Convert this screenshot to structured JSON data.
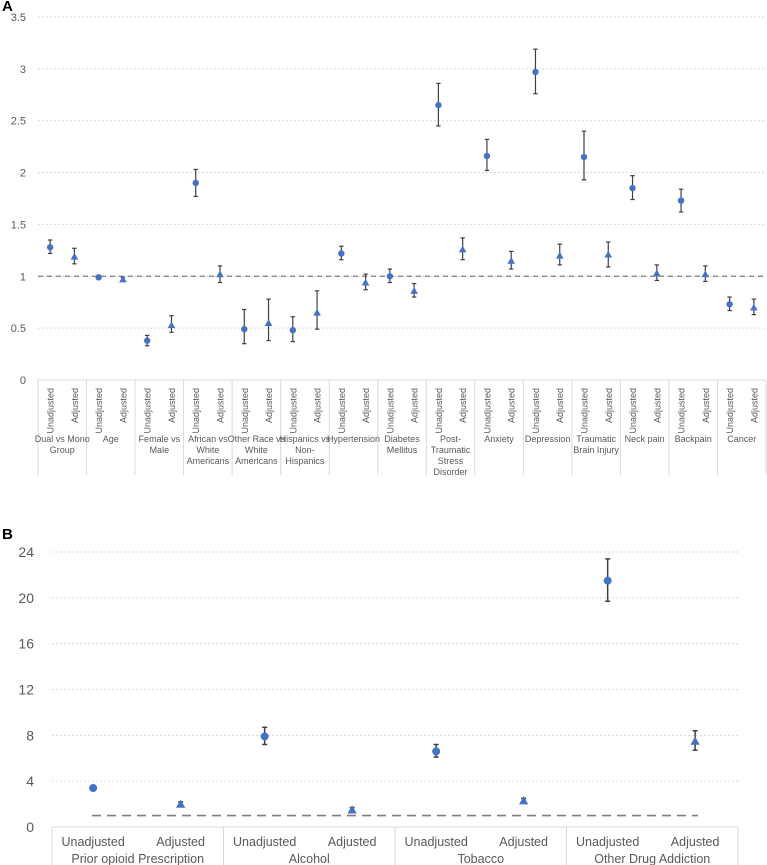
{
  "panels": [
    {
      "label": "A"
    },
    {
      "label": "B"
    }
  ],
  "colors": {
    "marker": "#4472C4",
    "errorbar": "#404040",
    "reference_line": "#7f7f7f",
    "grid": "#d9d9d9",
    "axis_text": "#595959"
  },
  "chart_data": [
    {
      "type": "scatter",
      "title": "",
      "xlabel": "",
      "ylabel": "",
      "ylim": [
        0,
        3.5
      ],
      "yticks": [
        "0",
        "0.5",
        "1",
        "1.5",
        "2",
        "2.5",
        "3",
        "3.5"
      ],
      "grid": "horizontal dotted",
      "reference_line": 1,
      "sub_labels": [
        "Unadjusted",
        "Adjusted"
      ],
      "marker_shapes": {
        "Unadjusted": "circle",
        "Adjusted": "triangle"
      },
      "groups": [
        {
          "label": "Dual vs Mono Group",
          "lines": [
            "Dual vs Mono",
            "Group"
          ],
          "points": [
            {
              "y": 1.28,
              "lo": 1.22,
              "hi": 1.35
            },
            {
              "y": 1.19,
              "lo": 1.12,
              "hi": 1.27
            }
          ]
        },
        {
          "label": "Age",
          "lines": [
            "Age"
          ],
          "points": [
            {
              "y": 0.99,
              "lo": 0.98,
              "hi": 1.0
            },
            {
              "y": 0.97,
              "lo": 0.96,
              "hi": 0.99
            }
          ]
        },
        {
          "label": "Female vs Male",
          "lines": [
            "Female vs",
            "Male"
          ],
          "points": [
            {
              "y": 0.38,
              "lo": 0.33,
              "hi": 0.43
            },
            {
              "y": 0.53,
              "lo": 0.46,
              "hi": 0.62
            }
          ]
        },
        {
          "label": "African vs White Americans",
          "lines": [
            "African vs",
            "White",
            "Americans"
          ],
          "points": [
            {
              "y": 1.9,
              "lo": 1.77,
              "hi": 2.03
            },
            {
              "y": 1.02,
              "lo": 0.94,
              "hi": 1.1
            }
          ]
        },
        {
          "label": "Other Race vs White Americans",
          "lines": [
            "Other Race vs",
            "White",
            "Americans"
          ],
          "points": [
            {
              "y": 0.49,
              "lo": 0.35,
              "hi": 0.68
            },
            {
              "y": 0.55,
              "lo": 0.38,
              "hi": 0.78
            }
          ]
        },
        {
          "label": "Hispanics vs Non-Hispanics",
          "lines": [
            "Hispanics vs",
            "Non-",
            "Hispanics"
          ],
          "points": [
            {
              "y": 0.48,
              "lo": 0.37,
              "hi": 0.61
            },
            {
              "y": 0.65,
              "lo": 0.49,
              "hi": 0.86
            }
          ]
        },
        {
          "label": "Hypertension",
          "lines": [
            "Hypertension"
          ],
          "points": [
            {
              "y": 1.22,
              "lo": 1.16,
              "hi": 1.29
            },
            {
              "y": 0.94,
              "lo": 0.87,
              "hi": 1.02
            }
          ]
        },
        {
          "label": "Diabetes Mellitus",
          "lines": [
            "Diabetes",
            "Mellitus"
          ],
          "points": [
            {
              "y": 1.0,
              "lo": 0.94,
              "hi": 1.07
            },
            {
              "y": 0.86,
              "lo": 0.8,
              "hi": 0.93
            }
          ]
        },
        {
          "label": "Post-Traumatic Stress Disorder",
          "lines": [
            "Post-",
            "Traumatic",
            "Stress",
            "Disorder"
          ],
          "points": [
            {
              "y": 2.65,
              "lo": 2.45,
              "hi": 2.86
            },
            {
              "y": 1.26,
              "lo": 1.16,
              "hi": 1.37
            }
          ]
        },
        {
          "label": "Anxiety",
          "lines": [
            "Anxiety"
          ],
          "points": [
            {
              "y": 2.16,
              "lo": 2.02,
              "hi": 2.32
            },
            {
              "y": 1.15,
              "lo": 1.07,
              "hi": 1.24
            }
          ]
        },
        {
          "label": "Depression",
          "lines": [
            "Depression"
          ],
          "points": [
            {
              "y": 2.97,
              "lo": 2.76,
              "hi": 3.19
            },
            {
              "y": 1.2,
              "lo": 1.11,
              "hi": 1.31
            }
          ]
        },
        {
          "label": "Traumatic Brain Injury",
          "lines": [
            "Traumatic",
            "Brain Injury"
          ],
          "points": [
            {
              "y": 2.15,
              "lo": 1.93,
              "hi": 2.4
            },
            {
              "y": 1.21,
              "lo": 1.09,
              "hi": 1.33
            }
          ]
        },
        {
          "label": "Neck pain",
          "lines": [
            "Neck pain"
          ],
          "points": [
            {
              "y": 1.85,
              "lo": 1.74,
              "hi": 1.97
            },
            {
              "y": 1.03,
              "lo": 0.96,
              "hi": 1.11
            }
          ]
        },
        {
          "label": "Backpain",
          "lines": [
            "Backpain"
          ],
          "points": [
            {
              "y": 1.73,
              "lo": 1.62,
              "hi": 1.84
            },
            {
              "y": 1.02,
              "lo": 0.95,
              "hi": 1.1
            }
          ]
        },
        {
          "label": "Cancer",
          "lines": [
            "Cancer"
          ],
          "points": [
            {
              "y": 0.73,
              "lo": 0.67,
              "hi": 0.8
            },
            {
              "y": 0.7,
              "lo": 0.63,
              "hi": 0.78
            }
          ]
        }
      ]
    },
    {
      "type": "scatter",
      "title": "",
      "xlabel": "",
      "ylabel": "",
      "ylim": [
        0,
        24
      ],
      "yticks": [
        "0",
        "4",
        "8",
        "12",
        "16",
        "20",
        "24"
      ],
      "grid": "horizontal dotted",
      "reference_line": 1,
      "sub_labels": [
        "Unadjusted",
        "Adjusted"
      ],
      "marker_shapes": {
        "Unadjusted": "circle",
        "Adjusted": "triangle"
      },
      "groups": [
        {
          "label": "Prior opioid Prescription",
          "points": [
            {
              "y": 3.4,
              "lo": 3.2,
              "hi": 3.6
            },
            {
              "y": 2.0,
              "lo": 1.8,
              "hi": 2.2
            }
          ]
        },
        {
          "label": "Alcohol",
          "points": [
            {
              "y": 7.9,
              "lo": 7.2,
              "hi": 8.7
            },
            {
              "y": 1.5,
              "lo": 1.3,
              "hi": 1.7
            }
          ]
        },
        {
          "label": "Tobacco",
          "points": [
            {
              "y": 6.6,
              "lo": 6.1,
              "hi": 7.2
            },
            {
              "y": 2.3,
              "lo": 2.1,
              "hi": 2.5
            }
          ]
        },
        {
          "label": "Other Drug Addiction",
          "points": [
            {
              "y": 21.5,
              "lo": 19.7,
              "hi": 23.4
            },
            {
              "y": 7.5,
              "lo": 6.7,
              "hi": 8.4
            }
          ]
        }
      ]
    }
  ]
}
